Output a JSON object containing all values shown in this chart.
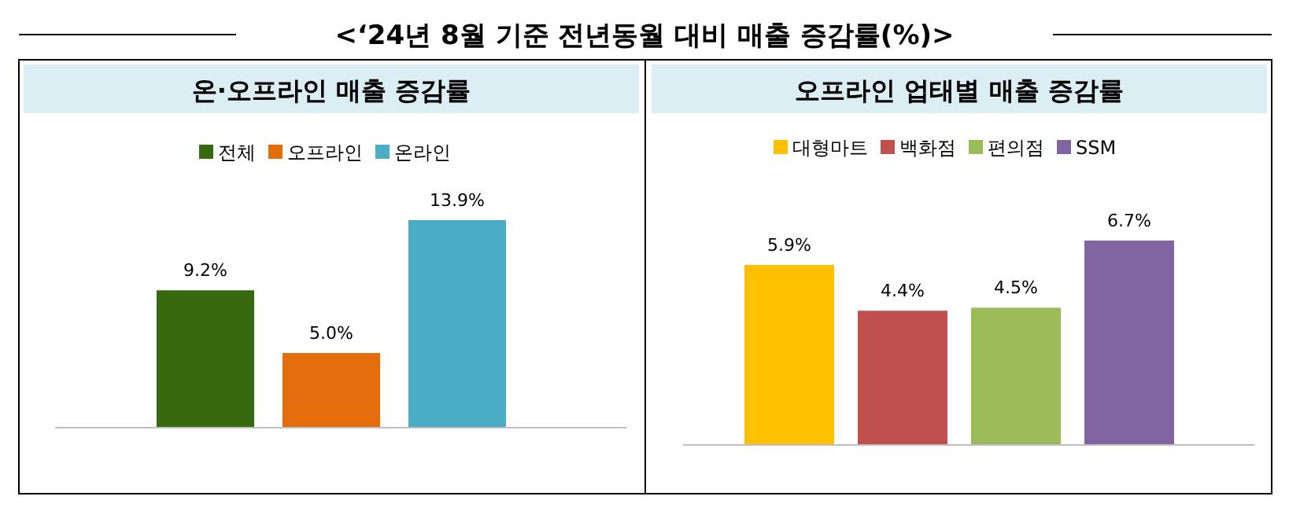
{
  "chart_data": [
    {
      "type": "other",
      "title": "<‘24년 8월 기준 전년동월 대비 매출 증감률(%)>"
    },
    {
      "type": "bar",
      "title": "온·오프라인 매출 증감률",
      "categories": [
        null
      ],
      "legend": "top",
      "series": [
        {
          "name": "전체",
          "color": "#376a0e",
          "values": [
            9.2
          ],
          "value_labels": [
            "9.2%"
          ]
        },
        {
          "name": "오프라인",
          "color": "#e46c0a",
          "values": [
            5.0
          ],
          "value_labels": [
            "5.0%"
          ]
        },
        {
          "name": "온라인",
          "color": "#4bacc6",
          "values": [
            13.9
          ],
          "value_labels": [
            "13.9%"
          ]
        }
      ]
    },
    {
      "type": "bar",
      "title": "오프라인 업태별 매출 증감률",
      "categories": [
        null
      ],
      "legend": "top",
      "series": [
        {
          "name": "대형마트",
          "color": "#ffc000",
          "values": [
            5.9
          ],
          "value_labels": [
            "5.9%"
          ]
        },
        {
          "name": "백화점",
          "color": "#c0504d",
          "values": [
            4.4
          ],
          "value_labels": [
            "4.4%"
          ]
        },
        {
          "name": "편의점",
          "color": "#9bbb59",
          "values": [
            4.5
          ],
          "value_labels": [
            "4.5%"
          ]
        },
        {
          "name": "SSM",
          "color": "#8064a2",
          "values": [
            6.7
          ],
          "value_labels": [
            "6.7%"
          ]
        }
      ]
    }
  ]
}
